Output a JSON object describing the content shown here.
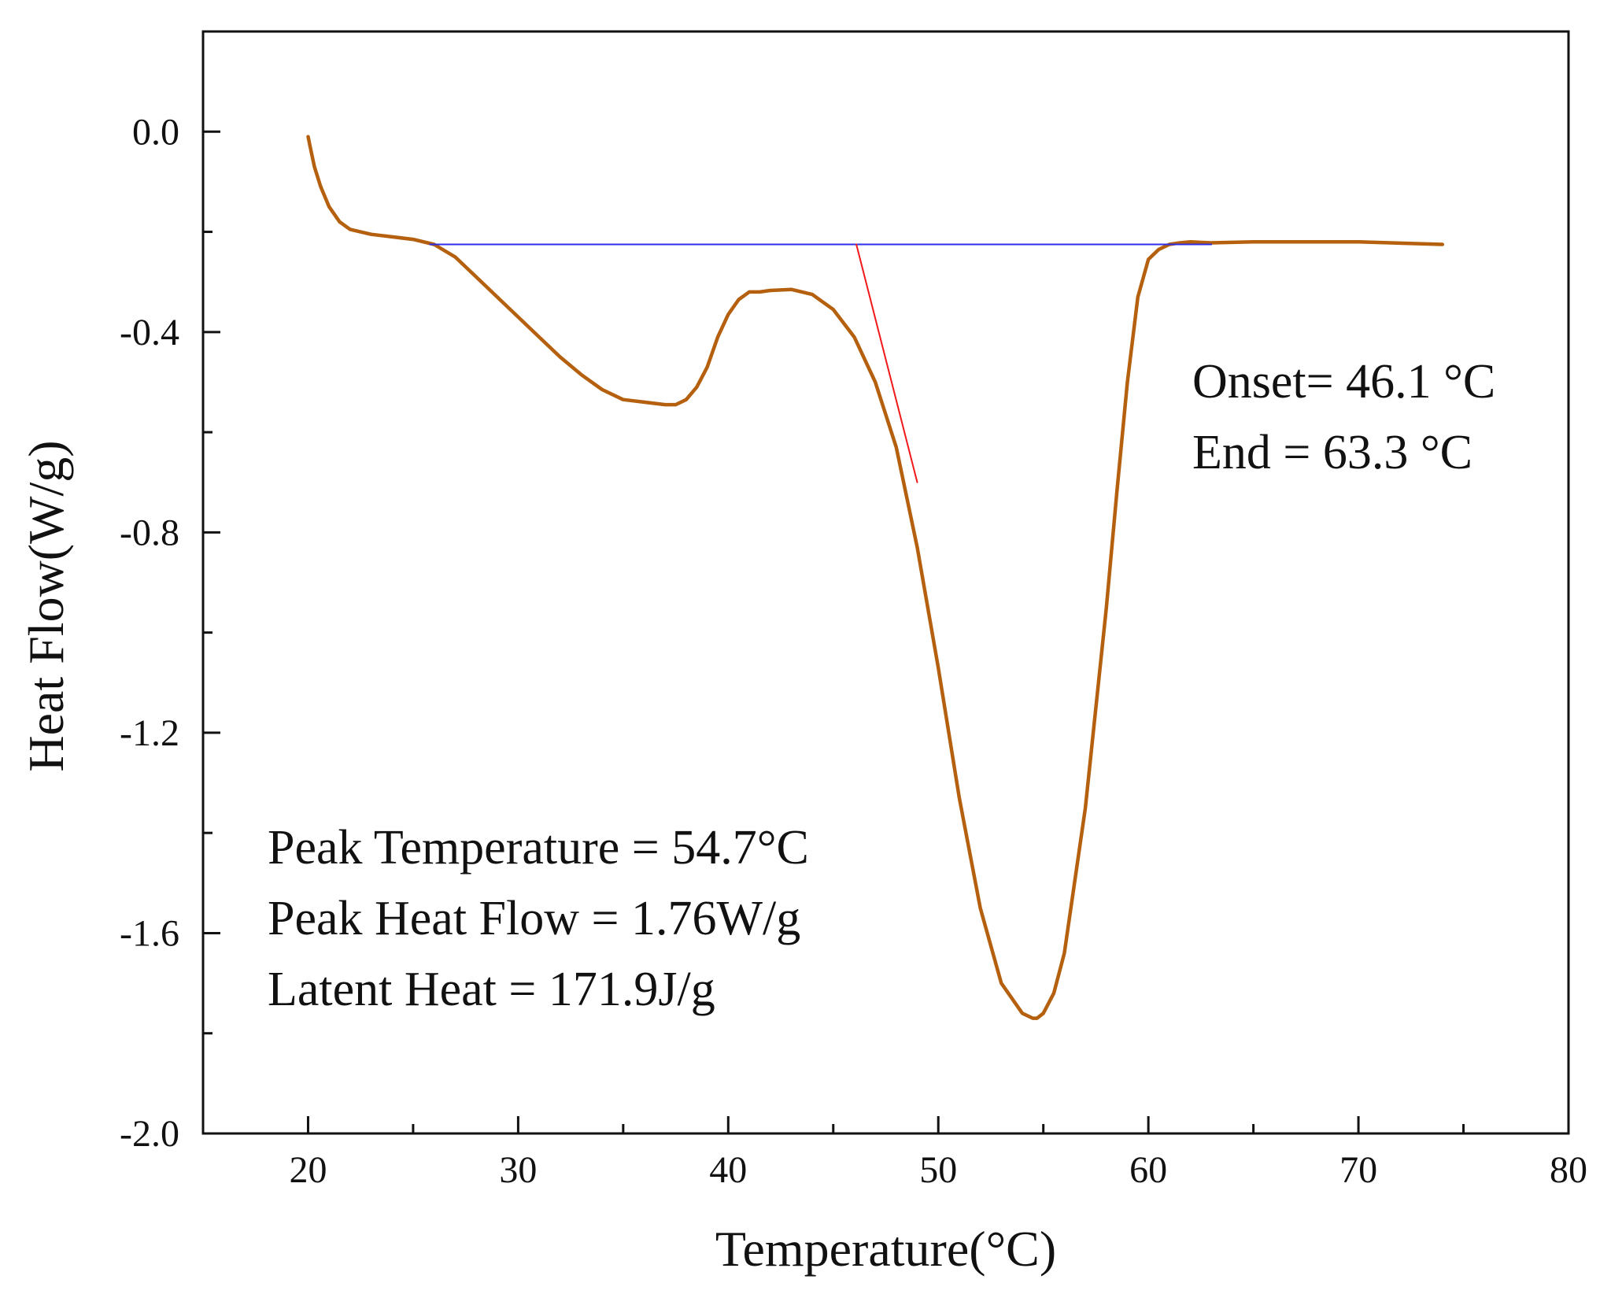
{
  "chart_data": {
    "type": "line",
    "title": "",
    "xlabel": "Temperature(°C)",
    "ylabel": "Heat Flow(W/g)",
    "xlim": [
      15,
      80
    ],
    "ylim": [
      -2.0,
      0.2
    ],
    "xticks": [
      20,
      30,
      40,
      50,
      60,
      70,
      80
    ],
    "xtick_labels": [
      "20",
      "30",
      "40",
      "50",
      "60",
      "70",
      "80"
    ],
    "xminor": [
      25,
      35,
      45,
      55,
      65,
      75
    ],
    "yticks": [
      0.0,
      -0.4,
      -0.8,
      -1.2,
      -1.6,
      -2.0
    ],
    "ytick_labels": [
      "0.0",
      "-0.4",
      "-0.8",
      "-1.2",
      "-1.6",
      "-2.0"
    ],
    "yminor": [
      -0.2,
      -0.6,
      -1.0,
      -1.4,
      -1.8
    ],
    "grid": false,
    "series": [
      {
        "name": "Heat Flow",
        "color": "#B5600F",
        "x": [
          20.0,
          20.1,
          20.3,
          20.6,
          21.0,
          21.5,
          22.0,
          23.0,
          24.0,
          25.0,
          26.0,
          27.0,
          28.0,
          29.0,
          30.0,
          31.0,
          32.0,
          33.0,
          34.0,
          35.0,
          36.0,
          37.0,
          37.5,
          38.0,
          38.5,
          39.0,
          39.5,
          40.0,
          40.5,
          41.0,
          41.5,
          42.0,
          43.0,
          44.0,
          45.0,
          46.0,
          47.0,
          48.0,
          49.0,
          50.0,
          51.0,
          52.0,
          53.0,
          54.0,
          54.5,
          54.7,
          55.0,
          55.5,
          56.0,
          57.0,
          58.0,
          58.5,
          59.0,
          59.5,
          60.0,
          60.5,
          61.0,
          61.5,
          62.0,
          63.0,
          65.0,
          70.0,
          74.0
        ],
        "y": [
          -0.01,
          -0.03,
          -0.07,
          -0.11,
          -0.15,
          -0.18,
          -0.195,
          -0.205,
          -0.21,
          -0.215,
          -0.225,
          -0.25,
          -0.29,
          -0.33,
          -0.37,
          -0.41,
          -0.45,
          -0.485,
          -0.515,
          -0.535,
          -0.54,
          -0.545,
          -0.545,
          -0.535,
          -0.51,
          -0.47,
          -0.41,
          -0.365,
          -0.335,
          -0.32,
          -0.32,
          -0.317,
          -0.315,
          -0.325,
          -0.355,
          -0.41,
          -0.5,
          -0.63,
          -0.83,
          -1.07,
          -1.33,
          -1.55,
          -1.7,
          -1.76,
          -1.77,
          -1.77,
          -1.76,
          -1.72,
          -1.64,
          -1.35,
          -0.95,
          -0.72,
          -0.5,
          -0.33,
          -0.255,
          -0.235,
          -0.225,
          -0.222,
          -0.22,
          -0.222,
          -0.22,
          -0.22,
          -0.225
        ]
      },
      {
        "name": "Baseline",
        "color": "#2E2EE8",
        "x": [
          25.8,
          63.0
        ],
        "y": [
          -0.225,
          -0.225
        ]
      },
      {
        "name": "Onset tangent",
        "color": "#F01818",
        "x": [
          46.1,
          49.0
        ],
        "y": [
          -0.225,
          -0.7
        ]
      }
    ],
    "annotations": {
      "onset": "Onset= 46.1 °C",
      "end": "End = 63.3 °C",
      "peak_temperature": "Peak Temperature = 54.7°C",
      "peak_heat_flow": "Peak Heat Flow = 1.76W/g",
      "latent_heat": "Latent Heat = 171.9J/g"
    }
  }
}
